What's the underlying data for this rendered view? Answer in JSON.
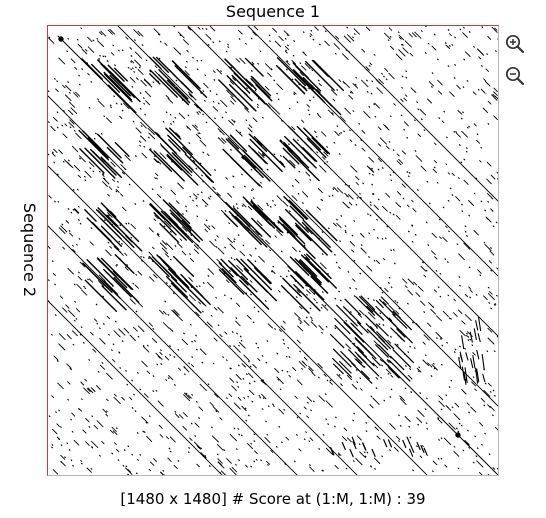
{
  "axes": {
    "sequence1_label": "Sequence 1",
    "sequence2_label": "Sequence 2"
  },
  "toolbar": {
    "zoom_in_icon": "zoom-in-icon",
    "zoom_out_icon": "zoom-out-icon"
  },
  "status": {
    "text": "[1480 x 1480] # Score at (1:M, 1:M) : 39"
  },
  "colors": {
    "dot": "#000000",
    "frame_top_left": "#d23a3a",
    "frame_bottom_right": "#b5b5b5",
    "background": "#ffffff"
  }
}
